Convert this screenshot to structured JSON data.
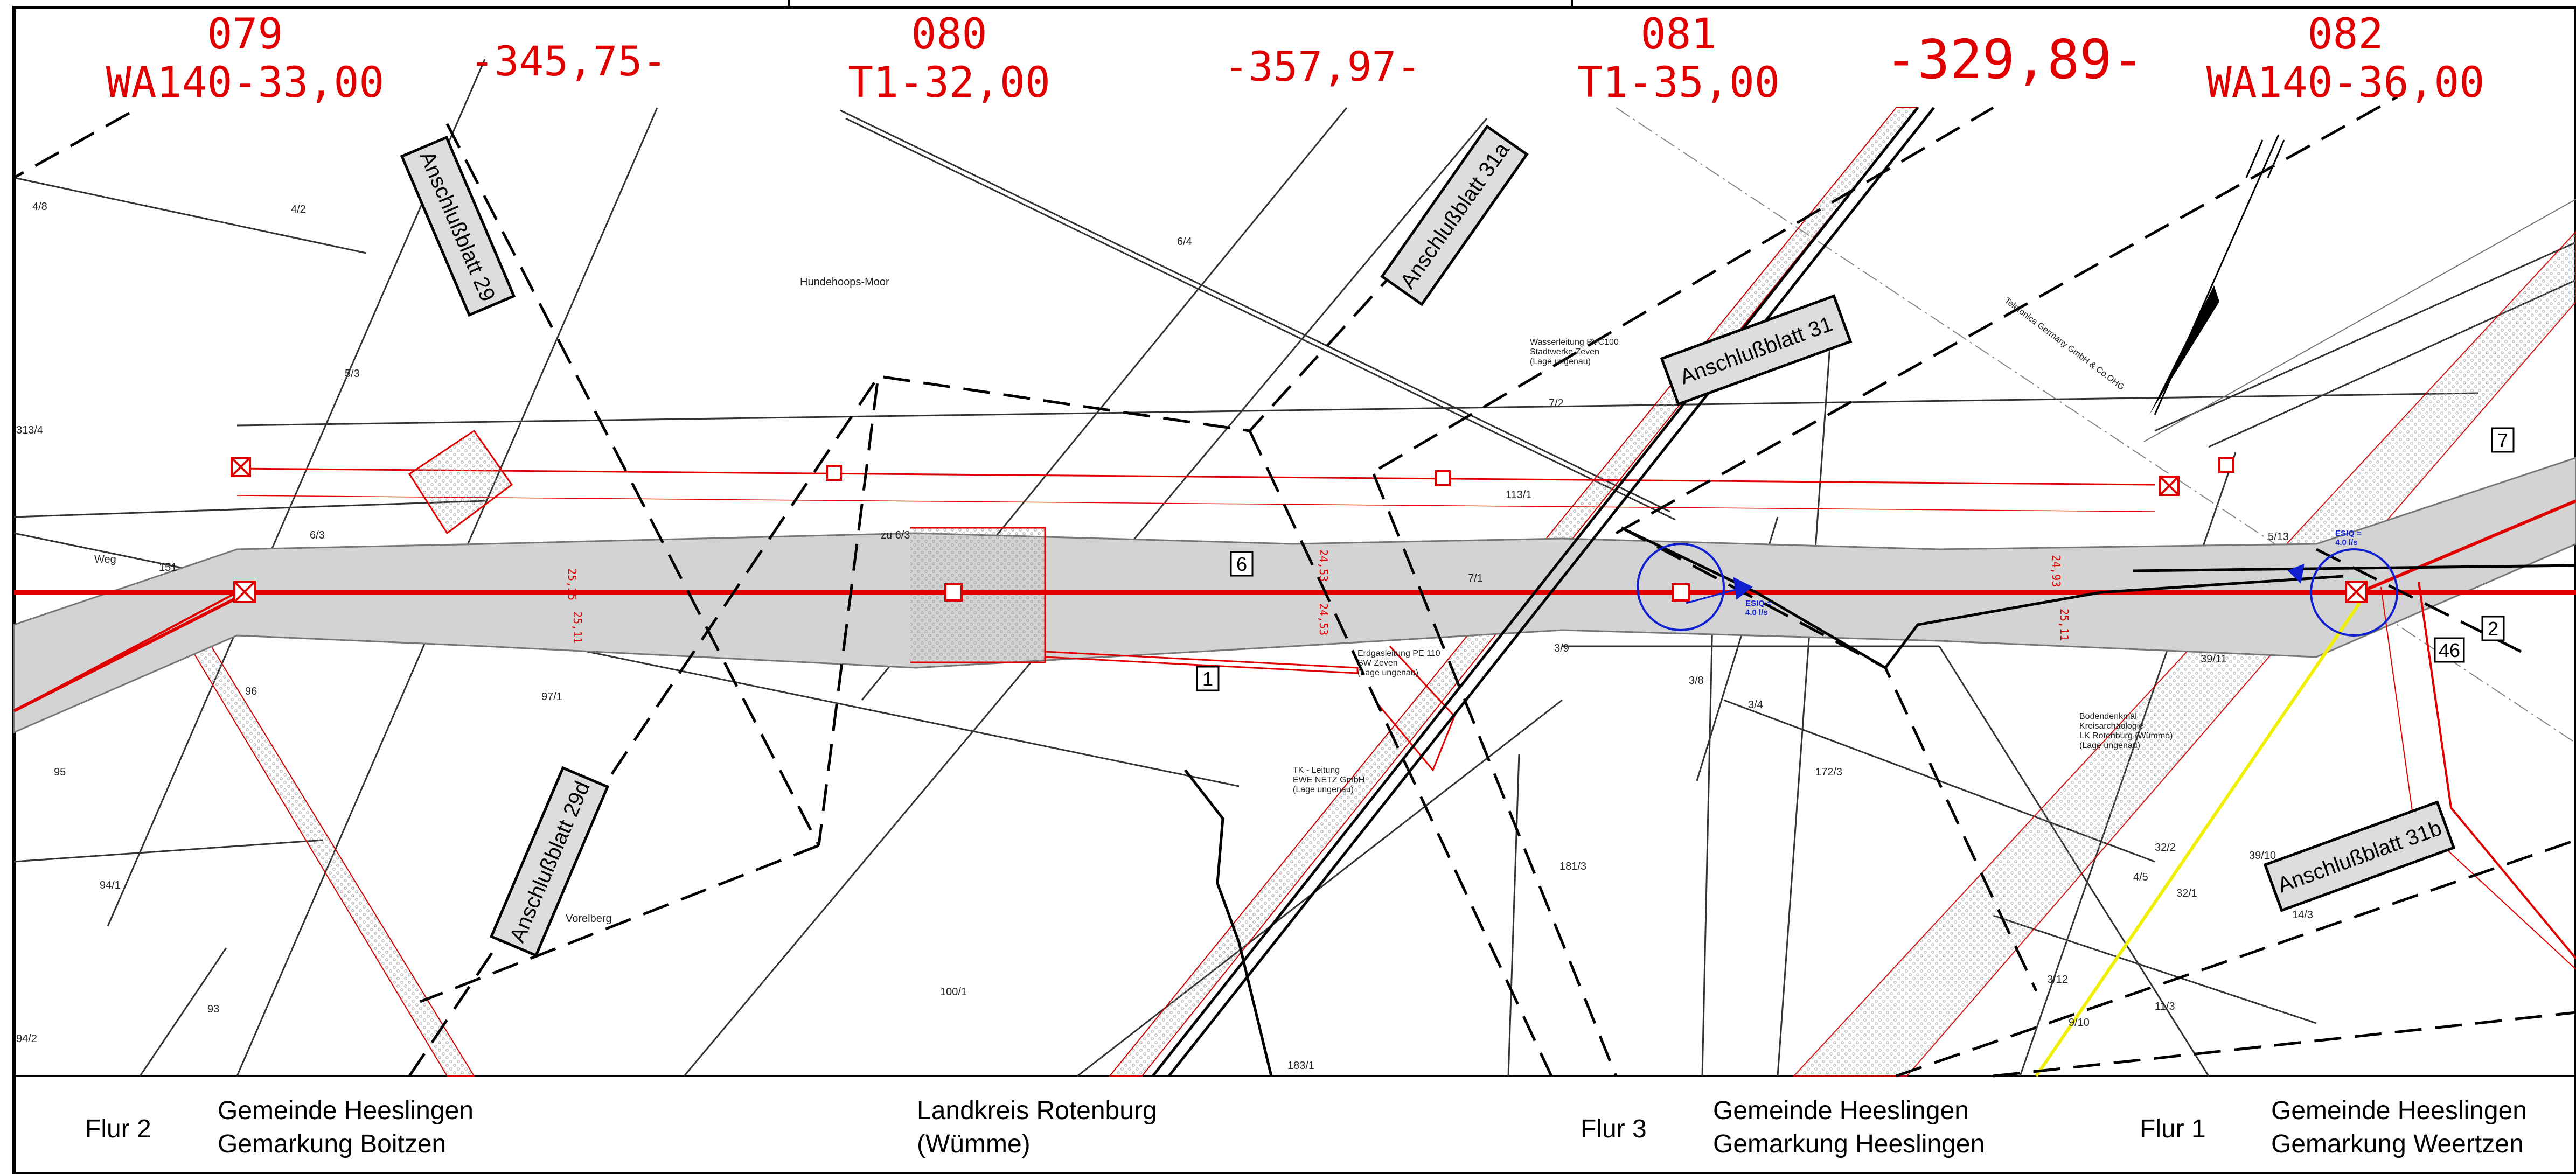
{
  "stations": [
    {
      "number": "079",
      "code": "WA140-33,00"
    },
    {
      "number": "080",
      "code": "T1-32,00"
    },
    {
      "number": "081",
      "code": "T1-35,00"
    },
    {
      "number": "082",
      "code": "WA140-36,00"
    }
  ],
  "distances": [
    "-345,75-",
    "-357,97-",
    "-329,89-"
  ],
  "sheet_refs": [
    "Anschlußblatt 29",
    "Anschlußblatt 29d",
    "Anschlußblatt 31a",
    "Anschlußblatt 31",
    "Anschlußblatt 31b"
  ],
  "footer": {
    "flur_2": "Flur 2",
    "gemeinde_1": "Gemeinde Heeslingen",
    "gemarkung_1": "Gemarkung Boitzen",
    "landkreis_1": "Landkreis Rotenburg",
    "landkreis_2": "(Wümme)",
    "flur_3": "Flur 3",
    "gemeinde_2": "Gemeinde Heeslingen",
    "gemarkung_2": "Gemarkung Heeslingen",
    "flur_1": "Flur 1",
    "gemeinde_3": "Gemeinde Heeslingen",
    "gemarkung_3": "Gemarkung Weertzen"
  },
  "parcels": [
    "4/8",
    "4/2",
    "6/4",
    "313/4",
    "5/3",
    "6/3",
    "96",
    "95",
    "94/1",
    "93",
    "94/2",
    "97/1",
    "100/1",
    "183/1",
    "181/3",
    "3/4",
    "172/3",
    "3/8",
    "3/9",
    "7/2",
    "113/1",
    "7/1",
    "5/13",
    "39/11",
    "32/2",
    "32/1",
    "4/5",
    "3/12",
    "9/10",
    "11/3",
    "14/3",
    "39/10",
    "zu 6/3",
    "Weg",
    "151"
  ],
  "place_names": [
    "Hundehoops-Moor",
    "Vorelberg"
  ],
  "annotations": {
    "water_line": "Wasserleitung PVC100",
    "water_owner": "Stadtwerke Zeven",
    "water_pos": "(Lage ungenau)",
    "gas_line": "Erdgasleitung PE 110",
    "gas_owner": "SW Zeven",
    "gas_pos": "(Lage ungenau)",
    "tk_line": "TK - Leitung",
    "tk_owner": "EWE NETZ GmbH",
    "tk_pos": "(Lage ungenau)",
    "monument": "Bodendenkmal",
    "monument_2": "Kreisarchäologie",
    "monument_3": "LK Rotenburg (Wümme)",
    "monument_4": "(Lage ungenau)",
    "cable_owner": "Telefonica Germany GmbH & Co.OHG",
    "esiq_1": "ESIQ =",
    "esiq_1b": "4.0 l/s",
    "esiq_2": "ESIQ =",
    "esiq_2b": "4.0 l/s"
  },
  "widths": [
    "25,35",
    "25,11",
    "24,53",
    "24,53",
    "24,93",
    "25,11"
  ],
  "boxed_numbers": [
    "6",
    "1",
    "7",
    "2",
    "46"
  ],
  "colors": {
    "route": "#e00000",
    "corridor": "#d3d3d3",
    "linework": "#000000",
    "flow": "#1020d0",
    "highlight": "#f0f000"
  }
}
